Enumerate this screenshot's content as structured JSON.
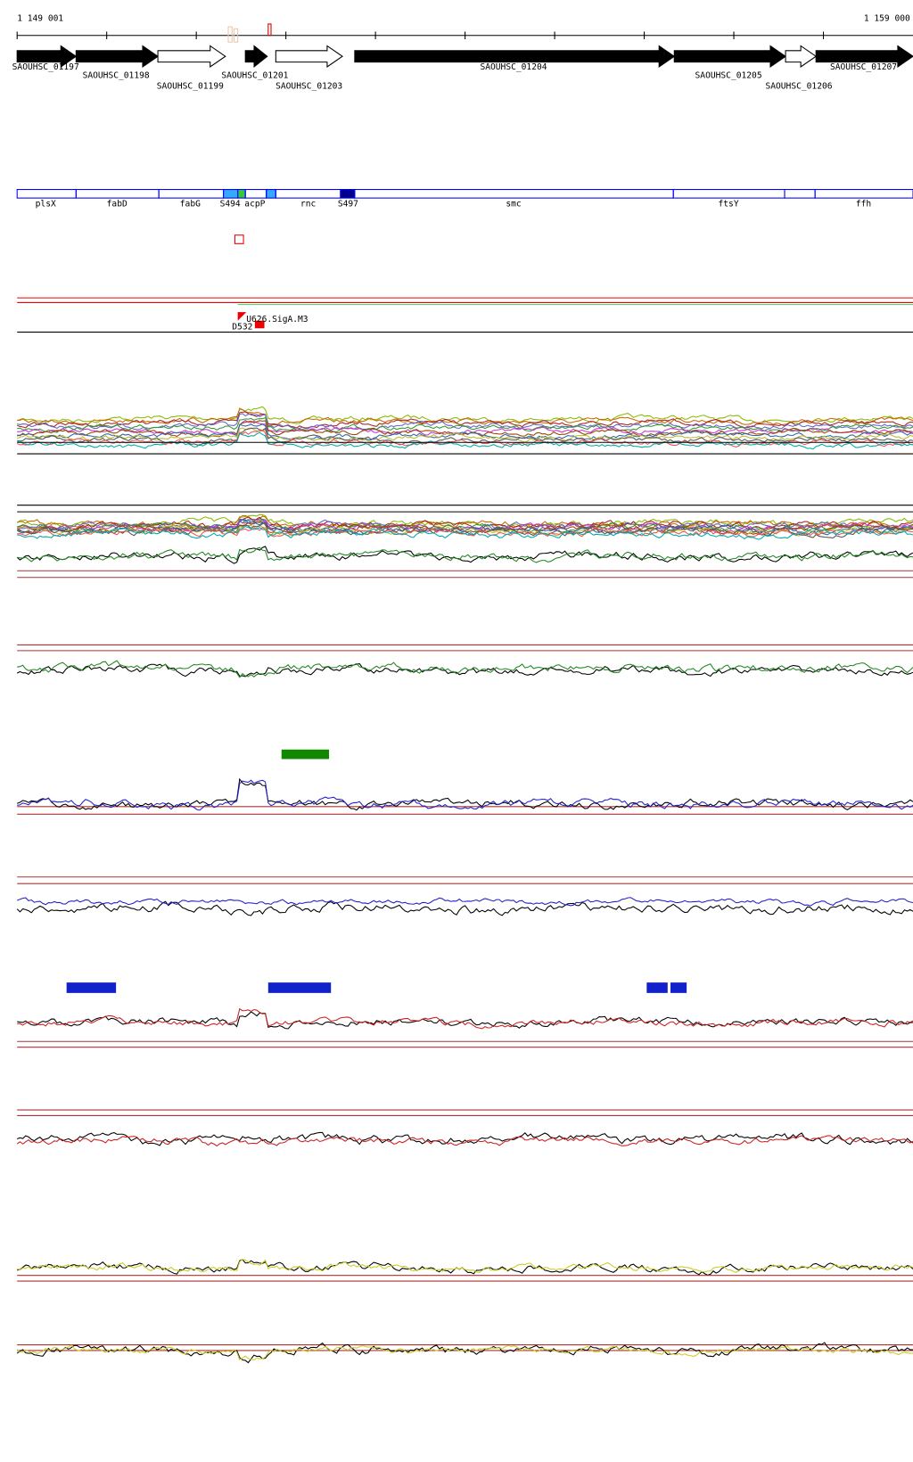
{
  "ruler": {
    "start": "1 149 001",
    "end": "1 159 000"
  },
  "genes": [
    "SAOUHSC_01197",
    "SAOUHSC_01198",
    "SAOUHSC_01199",
    "SAOUHSC_01201",
    "SAOUHSC_01203",
    "SAOUHSC_01204",
    "SAOUHSC_01205",
    "SAOUHSC_01206",
    "SAOUHSC_01207"
  ],
  "features": [
    "plsX",
    "fabD",
    "fabG",
    "S494",
    "acpP",
    "rnc",
    "S497",
    "smc",
    "ftsY",
    "ffh"
  ],
  "sites": [
    "U626.SigA.M3",
    "D532"
  ]
}
